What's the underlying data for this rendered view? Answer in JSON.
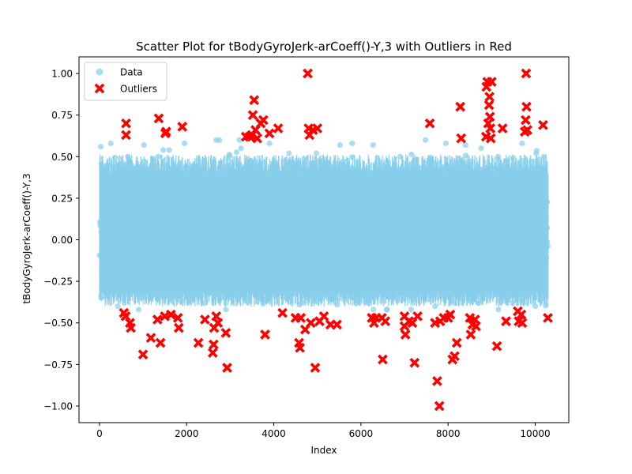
{
  "chart_data": {
    "type": "scatter",
    "title": "Scatter Plot for tBodyGyroJerk-arCoeff()-Y,3 with Outliers in Red",
    "xlabel": "Index",
    "ylabel": "tBodyGyroJerk-arCoeff()-Y,3",
    "xlim": [
      -470,
      10770
    ],
    "ylim": [
      -1.1,
      1.1
    ],
    "xticks": [
      0,
      2000,
      4000,
      6000,
      8000,
      10000
    ],
    "yticks": [
      -1.0,
      -0.75,
      -0.5,
      -0.25,
      0.0,
      0.25,
      0.5,
      0.75,
      1.0
    ],
    "xtick_labels": [
      "0",
      "2000",
      "4000",
      "6000",
      "8000",
      "10000"
    ],
    "ytick_labels": [
      "−1.00",
      "−0.75",
      "−0.50",
      "−0.25",
      "0.00",
      "0.25",
      "0.50",
      "0.75",
      "1.00"
    ],
    "grid": false,
    "legend_position": "top-left",
    "series": [
      {
        "name": "Data",
        "color": "#87ceeb",
        "marker": "circle",
        "n_points": 10299,
        "x_range": [
          0,
          10298
        ],
        "core_range": [
          -0.35,
          0.45
        ],
        "points": [
          [
            30,
            0.56
          ],
          [
            260,
            0.58
          ],
          [
            420,
            -0.4
          ],
          [
            650,
            0.5
          ],
          [
            940,
            -0.35
          ],
          [
            1020,
            0.57
          ],
          [
            1350,
            0.5
          ],
          [
            1600,
            0.54
          ],
          [
            1950,
            0.58
          ],
          [
            2400,
            -0.38
          ],
          [
            2680,
            0.6
          ],
          [
            2900,
            -0.42
          ],
          [
            3250,
            0.55
          ],
          [
            3700,
            -0.36
          ],
          [
            3900,
            0.58
          ],
          [
            4350,
            0.52
          ],
          [
            4700,
            -0.38
          ],
          [
            4980,
            0.52
          ],
          [
            5350,
            -0.36
          ],
          [
            5520,
            0.57
          ],
          [
            5800,
            0.58
          ],
          [
            6150,
            -0.38
          ],
          [
            6280,
            0.57
          ],
          [
            6600,
            -0.42
          ],
          [
            6900,
            0.5
          ],
          [
            7150,
            -0.42
          ],
          [
            7480,
            0.6
          ],
          [
            7700,
            -0.4
          ],
          [
            7950,
            0.58
          ],
          [
            8400,
            0.57
          ],
          [
            8700,
            -0.38
          ],
          [
            9150,
            0.5
          ],
          [
            9480,
            -0.38
          ],
          [
            9700,
            0.58
          ],
          [
            10000,
            -0.4
          ],
          [
            10200,
            0.5
          ]
        ]
      },
      {
        "name": "Outliers",
        "color": "#ff0000",
        "marker": "x",
        "points": [
          [
            560,
            -0.44
          ],
          [
            600,
            -0.46
          ],
          [
            610,
            0.7
          ],
          [
            610,
            0.63
          ],
          [
            700,
            -0.5
          ],
          [
            720,
            -0.53
          ],
          [
            1000,
            -0.69
          ],
          [
            1180,
            -0.59
          ],
          [
            1330,
            -0.48
          ],
          [
            1360,
            0.73
          ],
          [
            1400,
            -0.62
          ],
          [
            1500,
            -0.46
          ],
          [
            1510,
            0.64
          ],
          [
            1530,
            0.65
          ],
          [
            1640,
            -0.45
          ],
          [
            1800,
            -0.47
          ],
          [
            1820,
            -0.53
          ],
          [
            1900,
            0.68
          ],
          [
            2270,
            -0.62
          ],
          [
            2420,
            -0.48
          ],
          [
            2600,
            -0.68
          ],
          [
            2620,
            -0.63
          ],
          [
            2630,
            -0.53
          ],
          [
            2680,
            -0.46
          ],
          [
            2720,
            -0.5
          ],
          [
            2900,
            -0.56
          ],
          [
            2930,
            -0.77
          ],
          [
            3360,
            0.62
          ],
          [
            3450,
            0.62
          ],
          [
            3500,
            0.63
          ],
          [
            3520,
            0.75
          ],
          [
            3550,
            0.84
          ],
          [
            3580,
            0.66
          ],
          [
            3620,
            0.61
          ],
          [
            3700,
            0.7
          ],
          [
            3760,
            0.72
          ],
          [
            3800,
            -0.57
          ],
          [
            3900,
            0.64
          ],
          [
            4100,
            0.67
          ],
          [
            4200,
            -0.44
          ],
          [
            4500,
            -0.47
          ],
          [
            4580,
            -0.62
          ],
          [
            4600,
            -0.65
          ],
          [
            4620,
            -0.47
          ],
          [
            4720,
            -0.54
          ],
          [
            4780,
            1.0
          ],
          [
            4800,
            0.67
          ],
          [
            4820,
            0.63
          ],
          [
            4850,
            -0.5
          ],
          [
            4900,
            0.66
          ],
          [
            4950,
            -0.77
          ],
          [
            5000,
            0.67
          ],
          [
            5050,
            -0.49
          ],
          [
            5150,
            -0.46
          ],
          [
            5300,
            -0.51
          ],
          [
            5450,
            -0.51
          ],
          [
            6250,
            -0.47
          ],
          [
            6300,
            -0.5
          ],
          [
            6350,
            -0.47
          ],
          [
            6480,
            -0.47
          ],
          [
            6500,
            -0.72
          ],
          [
            6560,
            -0.49
          ],
          [
            7000,
            -0.46
          ],
          [
            7000,
            -0.52
          ],
          [
            7020,
            -0.57
          ],
          [
            7100,
            -0.49
          ],
          [
            7180,
            -0.5
          ],
          [
            7230,
            -0.74
          ],
          [
            7300,
            -0.46
          ],
          [
            7580,
            0.7
          ],
          [
            7700,
            -0.5
          ],
          [
            7750,
            -0.85
          ],
          [
            7800,
            -1.0
          ],
          [
            7820,
            -0.49
          ],
          [
            7900,
            -0.47
          ],
          [
            8000,
            -0.47
          ],
          [
            8050,
            -0.45
          ],
          [
            8100,
            -0.72
          ],
          [
            8150,
            -0.7
          ],
          [
            8200,
            -0.62
          ],
          [
            8300,
            0.61
          ],
          [
            8280,
            0.8
          ],
          [
            8500,
            -0.47
          ],
          [
            8520,
            -0.57
          ],
          [
            8560,
            -0.51
          ],
          [
            8620,
            -0.48
          ],
          [
            8640,
            -0.52
          ],
          [
            8870,
            0.62
          ],
          [
            8880,
            0.92
          ],
          [
            8900,
            0.95
          ],
          [
            8920,
            0.7
          ],
          [
            8940,
            0.81
          ],
          [
            8950,
            0.86
          ],
          [
            8960,
            0.74
          ],
          [
            8970,
            0.67
          ],
          [
            8980,
            0.61
          ],
          [
            9000,
            0.95
          ],
          [
            9120,
            -0.64
          ],
          [
            9250,
            0.67
          ],
          [
            9330,
            -0.49
          ],
          [
            9600,
            -0.43
          ],
          [
            9620,
            -0.49
          ],
          [
            9680,
            -0.45
          ],
          [
            9700,
            -0.5
          ],
          [
            9760,
            0.65
          ],
          [
            9780,
            0.72
          ],
          [
            9790,
            1.0
          ],
          [
            9800,
            0.8
          ],
          [
            9820,
            0.66
          ],
          [
            10180,
            0.69
          ],
          [
            10290,
            -0.47
          ]
        ]
      }
    ]
  }
}
